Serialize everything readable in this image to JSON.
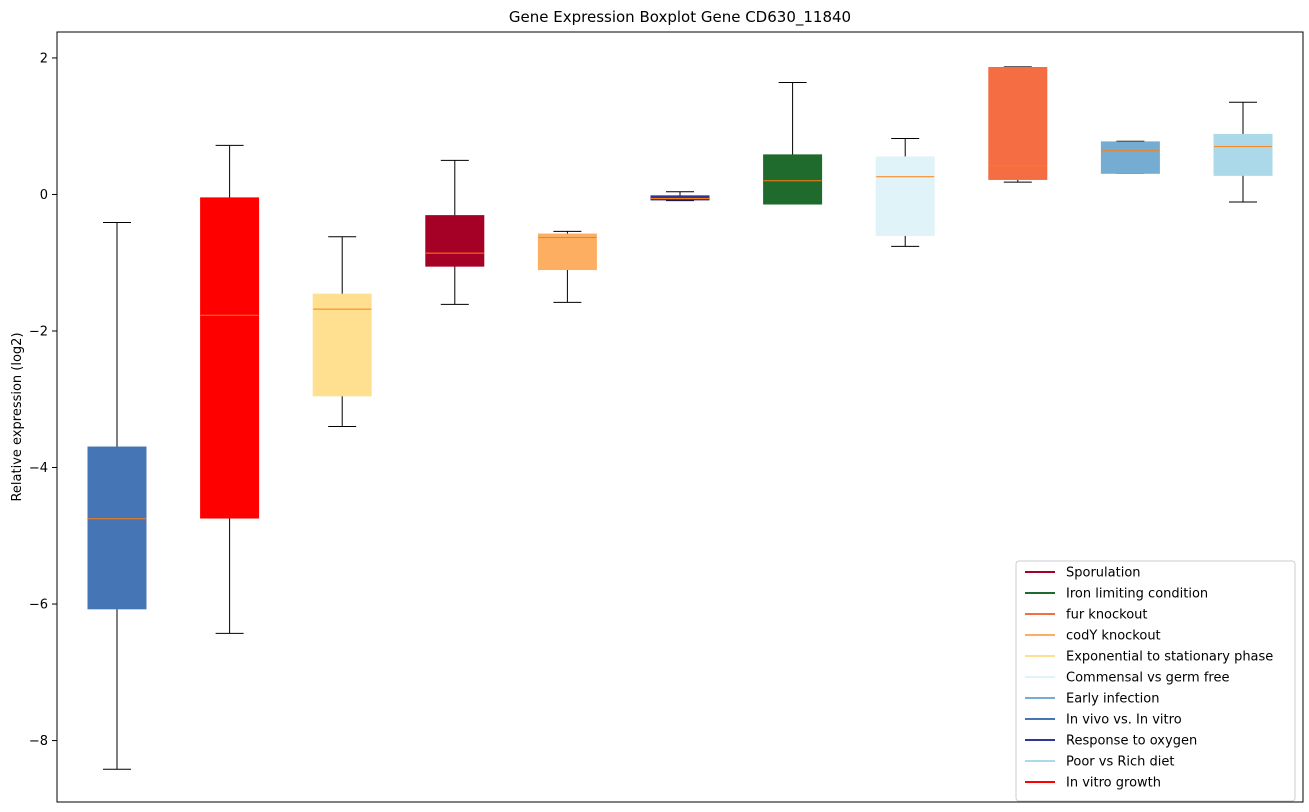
{
  "chart_data": {
    "type": "boxplot",
    "title": "Gene Expression Boxplot Gene CD630_11840",
    "xlabel": "",
    "ylabel": "Relative expression (log2)",
    "ylim": [
      -8.9,
      2.38
    ],
    "yticks": [
      -8,
      -6,
      -4,
      -2,
      0,
      2
    ],
    "median_color": "#ff7f0e",
    "whisker_color": "#000000",
    "boxes": [
      {
        "name": "In vivo vs. In vitro",
        "color": "#4575b4",
        "whisker_low": -8.42,
        "q1": -6.07,
        "median": -4.75,
        "q3": -3.7,
        "whisker_high": -0.41
      },
      {
        "name": "In vitro growth",
        "color": "#ff0000",
        "whisker_low": -6.43,
        "q1": -4.74,
        "median": -1.77,
        "q3": -0.05,
        "whisker_high": 0.72
      },
      {
        "name": "Exponential to stationary phase",
        "color": "#fee090",
        "whisker_low": -3.4,
        "q1": -2.95,
        "median": -1.68,
        "q3": -1.46,
        "whisker_high": -0.62
      },
      {
        "name": "Sporulation",
        "color": "#a50026",
        "whisker_low": -1.61,
        "q1": -1.05,
        "median": -0.86,
        "q3": -0.31,
        "whisker_high": 0.5
      },
      {
        "name": "codY knockout",
        "color": "#fdae61",
        "whisker_low": -1.58,
        "q1": -1.1,
        "median": -0.63,
        "q3": -0.58,
        "whisker_high": -0.54
      },
      {
        "name": "Response to oxygen",
        "color": "#313695",
        "whisker_low": -0.09,
        "q1": -0.08,
        "median": -0.06,
        "q3": -0.02,
        "whisker_high": 0.04
      },
      {
        "name": "Iron limiting condition",
        "color": "#1f6b2d",
        "whisker_low": -0.14,
        "q1": -0.14,
        "median": 0.2,
        "q3": 0.58,
        "whisker_high": 1.64
      },
      {
        "name": "Commensal vs germ free",
        "color": "#e0f3f8",
        "whisker_low": -0.76,
        "q1": -0.6,
        "median": 0.26,
        "q3": 0.55,
        "whisker_high": 0.82
      },
      {
        "name": "fur knockout",
        "color": "#f46d43",
        "whisker_low": 0.18,
        "q1": 0.22,
        "median": 0.42,
        "q3": 1.86,
        "whisker_high": 1.87
      },
      {
        "name": "Early infection",
        "color": "#74add1",
        "whisker_low": 0.31,
        "q1": 0.31,
        "median": 0.64,
        "q3": 0.77,
        "whisker_high": 0.78
      },
      {
        "name": "Poor vs Rich diet",
        "color": "#abd9e9",
        "whisker_low": -0.11,
        "q1": 0.28,
        "median": 0.7,
        "q3": 0.88,
        "whisker_high": 1.35
      }
    ],
    "legend": {
      "position": "lower-right",
      "entries": [
        {
          "label": "Sporulation",
          "color": "#a50026"
        },
        {
          "label": "Iron limiting condition",
          "color": "#1f6b2d"
        },
        {
          "label": "fur knockout",
          "color": "#f46d43"
        },
        {
          "label": "codY knockout",
          "color": "#fdae61"
        },
        {
          "label": "Exponential to stationary phase",
          "color": "#fee090"
        },
        {
          "label": "Commensal vs germ free",
          "color": "#e0f3f8"
        },
        {
          "label": "Early infection",
          "color": "#74add1"
        },
        {
          "label": "In vivo vs. In vitro",
          "color": "#4575b4"
        },
        {
          "label": "Response to oxygen",
          "color": "#313695"
        },
        {
          "label": "Poor vs Rich diet",
          "color": "#abd9e9"
        },
        {
          "label": "In vitro growth",
          "color": "#ff0000"
        }
      ]
    }
  }
}
